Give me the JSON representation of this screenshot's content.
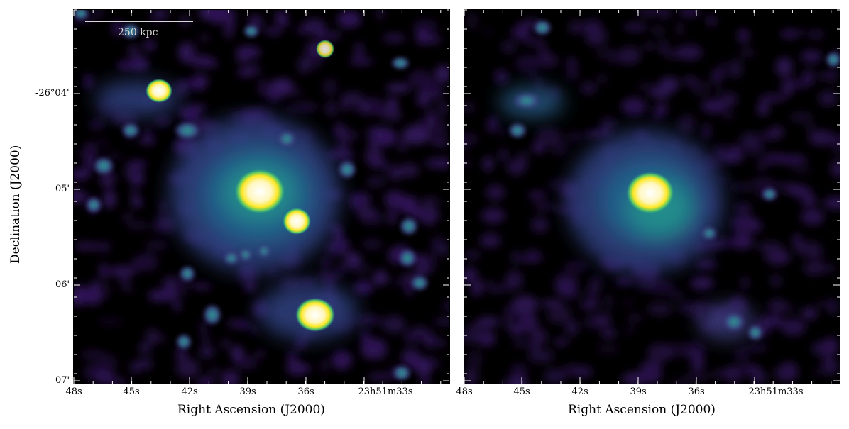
{
  "scale_bar": {
    "label": "250 kpc"
  },
  "x_axis": {
    "label": "Right Ascension (J2000)",
    "ticks": [
      "48s",
      "45s",
      "42s",
      "39s",
      "36s",
      "23h51m33s"
    ]
  },
  "y_axis": {
    "label": "Declination (J2000)",
    "ticks": [
      "-26°04'",
      "05'",
      "06'",
      "07'"
    ]
  },
  "colors": {
    "background": "#000000",
    "map_low": "#3b1a6b",
    "map_mid": "#23908c",
    "map_high": "#fde725"
  }
}
